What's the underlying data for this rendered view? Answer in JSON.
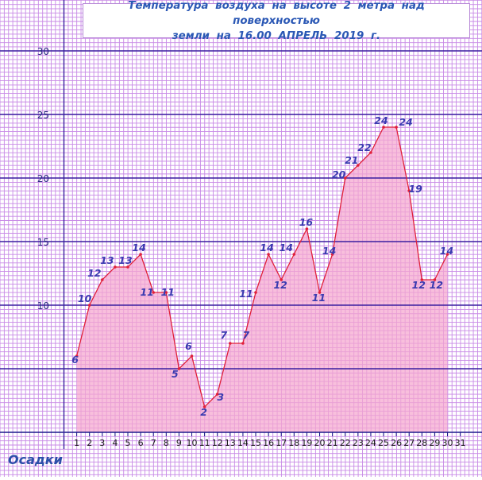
{
  "title": "Температура воздуха на высоте 2 метра над поверхностью\nземли на 16.00 АПРЕЛЬ 2019 г.",
  "precip_label": "Осадки",
  "colors": {
    "background": "#ffffff",
    "grid_minor": "#c88ae6",
    "grid_major": "#3a1fa0",
    "area_fill": "#f5a6cf",
    "line": "#e0203a",
    "label": "#3a3ab0",
    "tick_label": "#2a2a80"
  },
  "chart_data": {
    "type": "area",
    "title": "Температура воздуха на высоте 2 метра над поверхностью земли на 16.00 АПРЕЛЬ 2019 г.",
    "xlabel": "",
    "ylabel": "",
    "x_ticks": [
      1,
      2,
      3,
      4,
      5,
      6,
      7,
      8,
      9,
      10,
      11,
      12,
      13,
      14,
      15,
      16,
      17,
      18,
      19,
      20,
      21,
      22,
      23,
      24,
      25,
      26,
      27,
      28,
      29,
      30,
      31
    ],
    "y_ticks": [
      10,
      15,
      20,
      25,
      30
    ],
    "ylim": [
      0,
      32.5
    ],
    "xlim": [
      0,
      32
    ],
    "grid": true,
    "series": [
      {
        "x": [
          1,
          2,
          3,
          4,
          5,
          6,
          7,
          8,
          9,
          10,
          11,
          12,
          13,
          14,
          15,
          16,
          17,
          18,
          19,
          20,
          21,
          22,
          23,
          24,
          25,
          26,
          27,
          28,
          29,
          30
        ],
        "values": [
          6,
          10,
          12,
          13,
          13,
          14,
          11,
          11,
          5,
          6,
          2,
          3,
          7,
          7,
          11,
          14,
          12,
          14,
          16,
          11,
          14,
          20,
          21,
          22,
          24,
          24,
          19,
          12,
          12,
          14
        ]
      }
    ],
    "data_labels": [
      {
        "x": 1,
        "text": "6"
      },
      {
        "x": 2,
        "text": "10"
      },
      {
        "x": 3,
        "text": "12"
      },
      {
        "x": 4,
        "text": "13"
      },
      {
        "x": 5,
        "text": "13"
      },
      {
        "x": 6,
        "text": "14"
      },
      {
        "x": 7,
        "text": "11"
      },
      {
        "x": 8,
        "text": "11"
      },
      {
        "x": 9,
        "text": "5"
      },
      {
        "x": 10,
        "text": "6"
      },
      {
        "x": 11,
        "text": "2"
      },
      {
        "x": 12,
        "text": "3"
      },
      {
        "x": 13,
        "text": "7"
      },
      {
        "x": 14,
        "text": "7"
      },
      {
        "x": 15,
        "text": "11"
      },
      {
        "x": 16,
        "text": "14"
      },
      {
        "x": 17,
        "text": "12"
      },
      {
        "x": 18,
        "text": "14"
      },
      {
        "x": 19,
        "text": "16"
      },
      {
        "x": 20,
        "text": "11"
      },
      {
        "x": 21,
        "text": "14"
      },
      {
        "x": 22,
        "text": "20"
      },
      {
        "x": 23,
        "text": "21"
      },
      {
        "x": 24,
        "text": "22"
      },
      {
        "x": 25,
        "text": "24"
      },
      {
        "x": 26,
        "text": "24"
      },
      {
        "x": 27,
        "text": "19"
      },
      {
        "x": 28,
        "text": "12"
      },
      {
        "x": 29,
        "text": "12"
      },
      {
        "x": 30,
        "text": "14"
      }
    ]
  }
}
